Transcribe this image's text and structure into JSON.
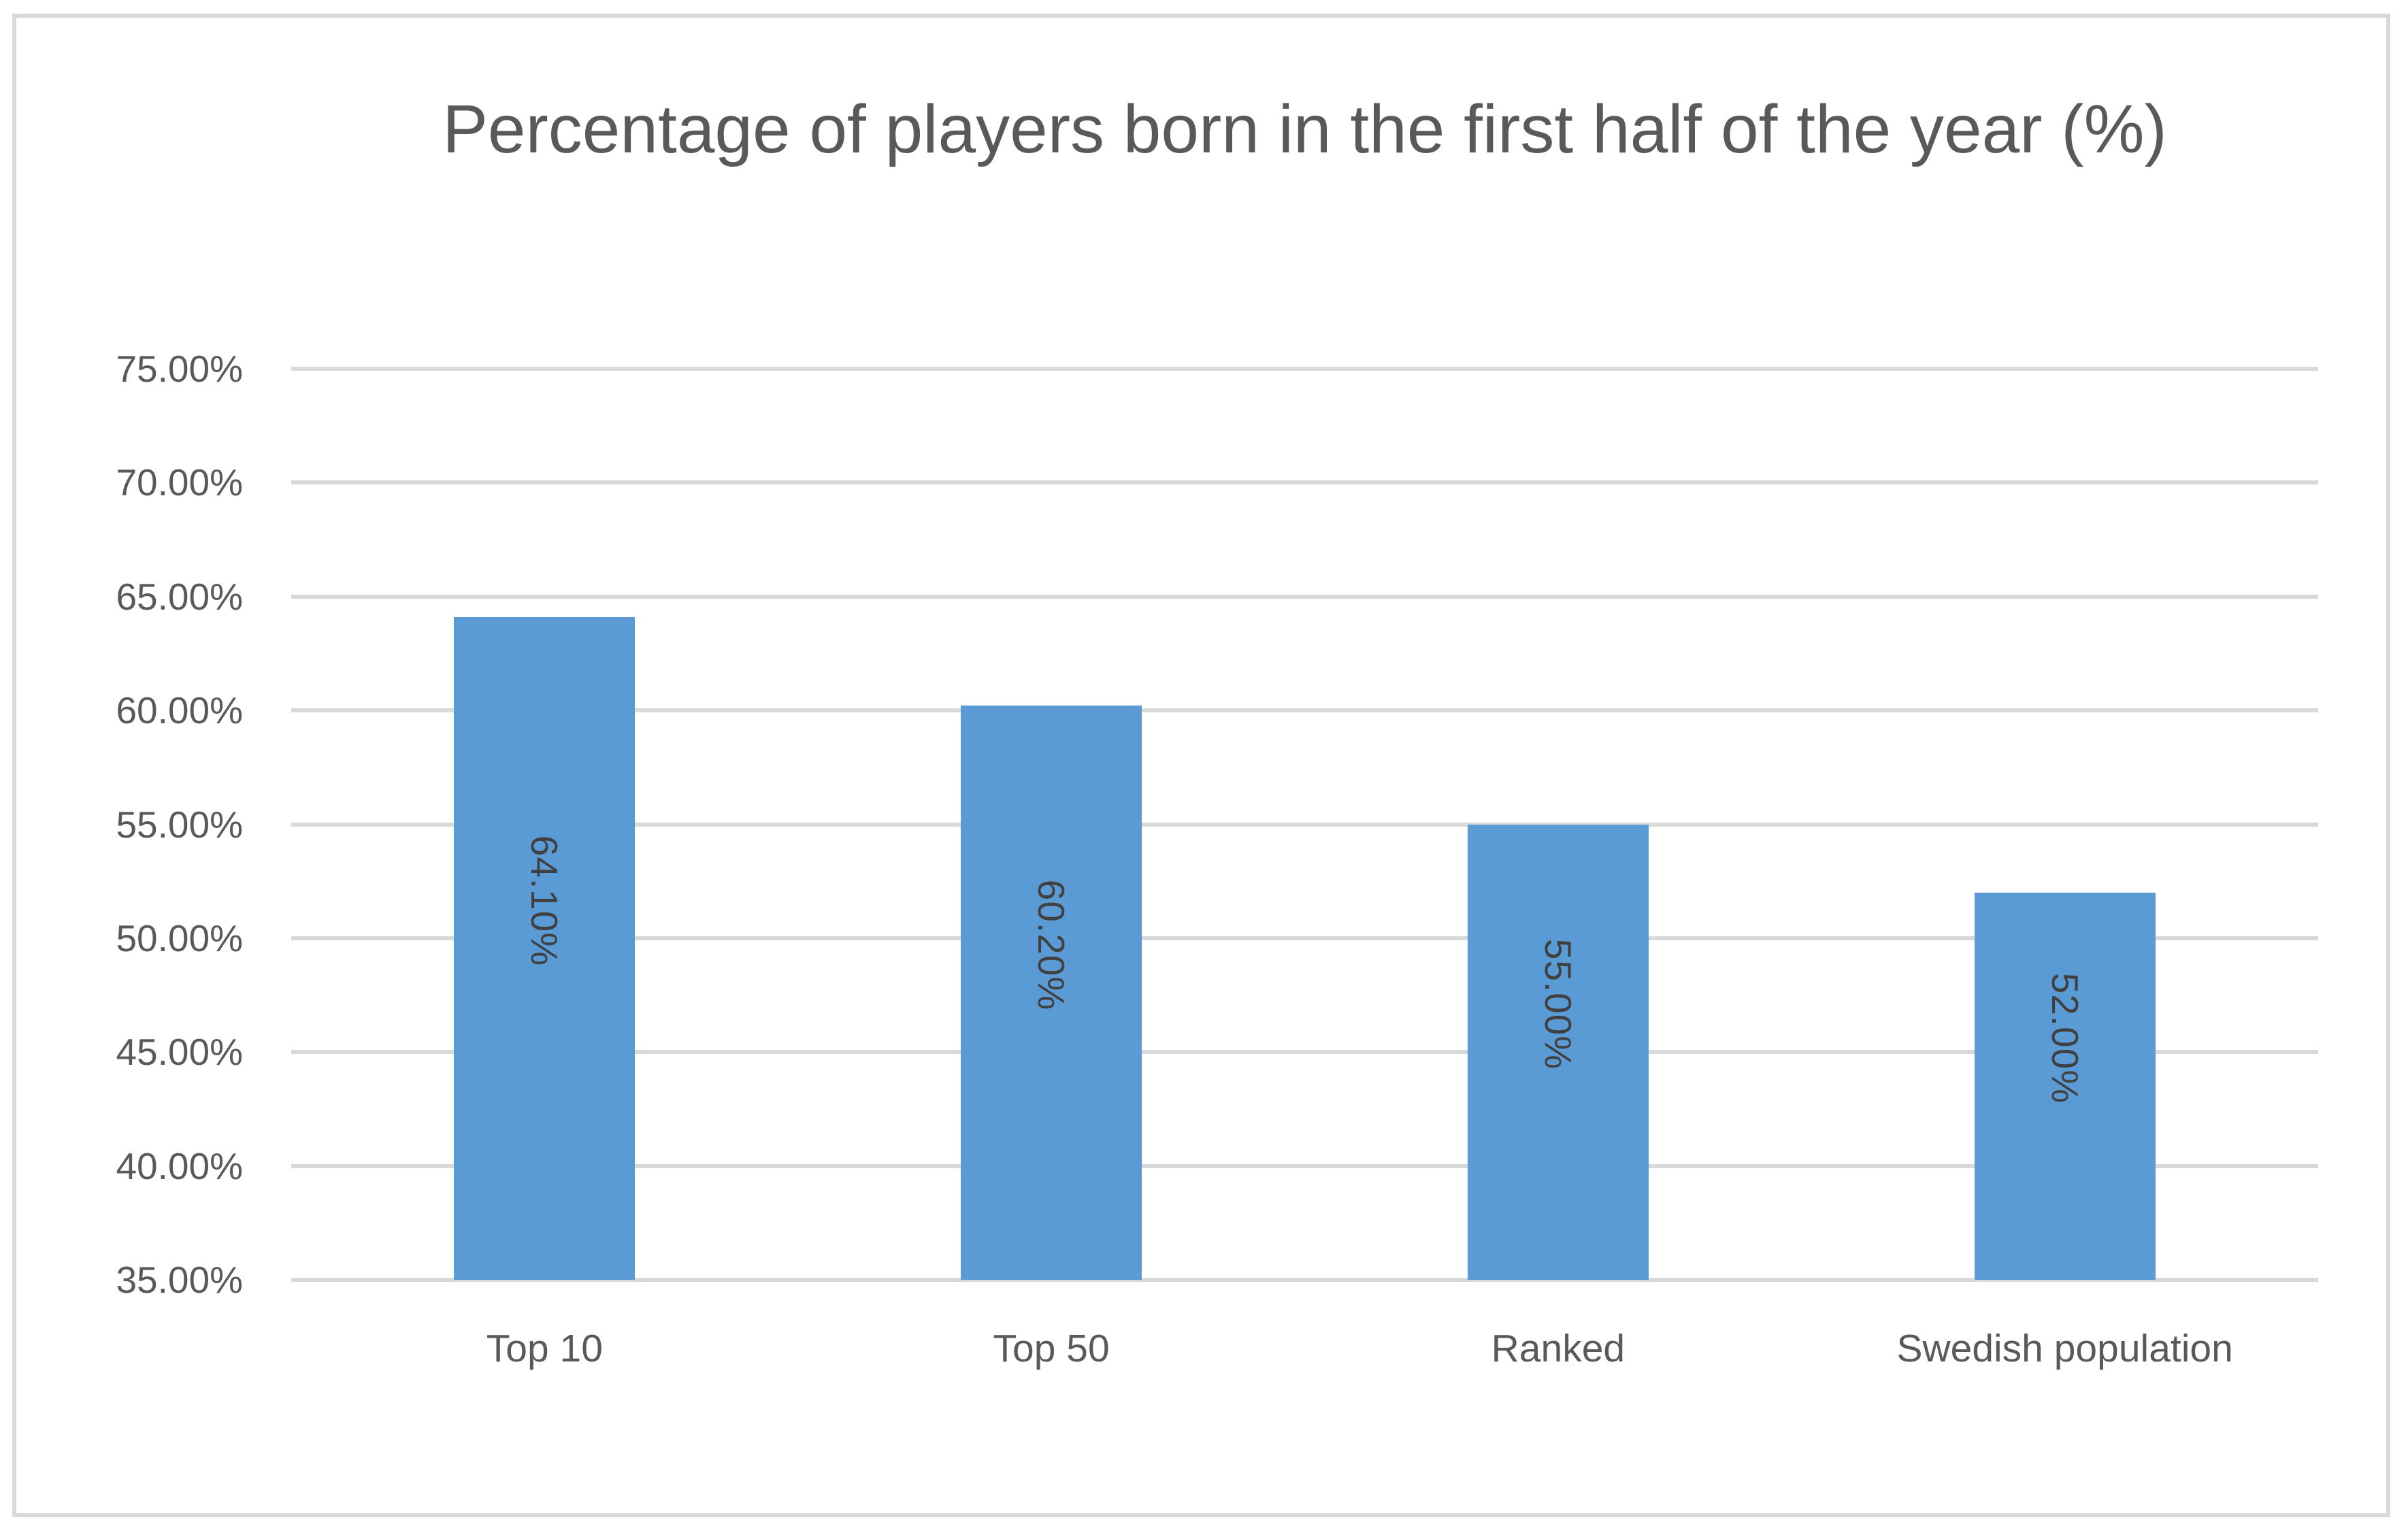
{
  "title": "Percentage of players born in the first half of the year (%)",
  "chart_data": {
    "type": "bar",
    "title": "Percentage of players born in the first half of the year (%)",
    "categories": [
      "Top 10",
      "Top 50",
      "Ranked",
      "Swedish population"
    ],
    "values": [
      64.1,
      60.2,
      55.0,
      52.0
    ],
    "data_labels": [
      "64.10%",
      "60.20%",
      "55.00%",
      "52.00%"
    ],
    "xlabel": "",
    "ylabel": "",
    "ylim": [
      35,
      75
    ],
    "ytick_step": 5,
    "ytick_labels": [
      "35.00%",
      "40.00%",
      "45.00%",
      "50.00%",
      "55.00%",
      "60.00%",
      "65.00%",
      "70.00%",
      "75.00%"
    ],
    "grid": true,
    "legend": false,
    "data_label_rotation_deg": 90,
    "colors": {
      "bar": "#5B9BD5",
      "gridline": "#D9D9D9",
      "frame_border": "#D9D9D9",
      "axis_text": "#595959",
      "data_label_text": "#404040",
      "background": "#FFFFFF"
    }
  }
}
